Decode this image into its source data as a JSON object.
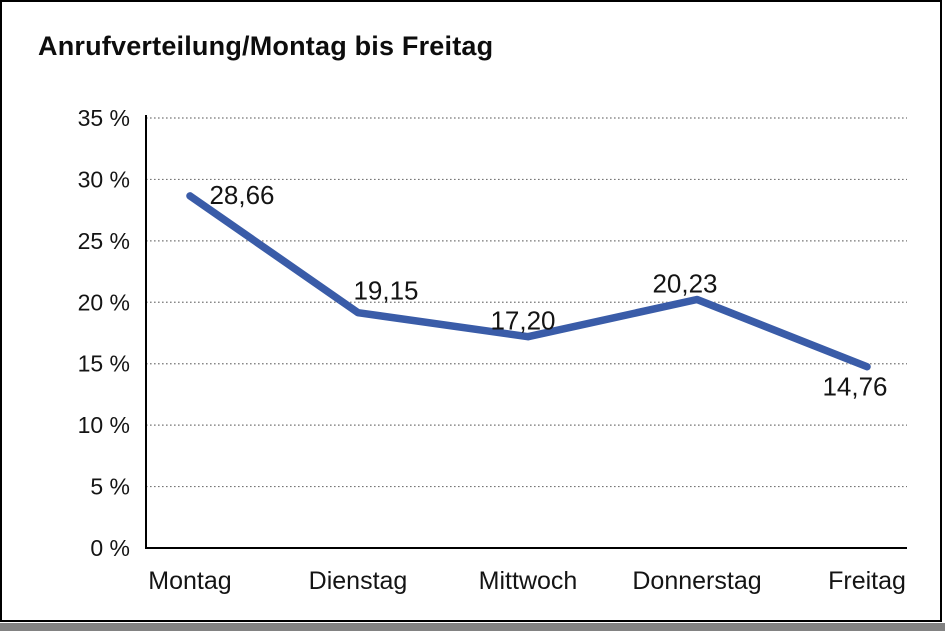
{
  "chart_data": {
    "type": "line",
    "title": "Anrufverteilung/Montag bis Freitag",
    "categories": [
      "Montag",
      "Dienstag",
      "Mittwoch",
      "Donnerstag",
      "Freitag"
    ],
    "values": [
      28.66,
      19.15,
      17.2,
      20.23,
      14.76
    ],
    "values_display": [
      "28,66",
      "19,15",
      "17,20",
      "20,23",
      "14,76"
    ],
    "xlabel": "",
    "ylabel": "",
    "ylim": [
      0,
      35
    ],
    "ytick_values": [
      0,
      5,
      10,
      15,
      20,
      25,
      30,
      35
    ],
    "yticks": [
      "0 %",
      "5 %",
      "10 %",
      "15 %",
      "20 %",
      "25 %",
      "30 %",
      "35 %"
    ],
    "grid": "horizontal-dotted",
    "legend": "none",
    "line_color": "#3A5CA8",
    "axis_color": "#000000",
    "grid_color": "#777777",
    "text_color": "#141414"
  }
}
